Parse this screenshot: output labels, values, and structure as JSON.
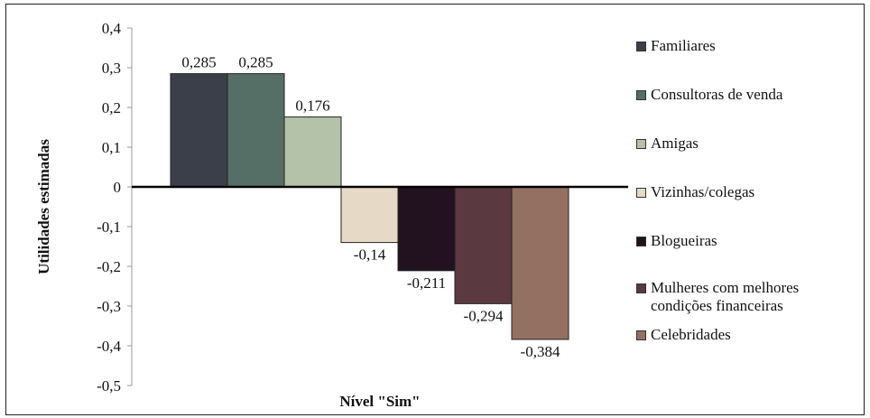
{
  "chart_data": {
    "type": "bar",
    "xlabel": "Nível \"Sim\"",
    "ylabel": "Utilidades estimadas",
    "ylim": [
      -0.5,
      0.4
    ],
    "yticks": [
      0.4,
      0.3,
      0.2,
      0.1,
      0,
      -0.1,
      -0.2,
      -0.3,
      -0.4,
      -0.5
    ],
    "ytick_labels": [
      "0,4",
      "0,3",
      "0,2",
      "0,1",
      "0",
      "-0,1",
      "-0,2",
      "-0,3",
      "-0,4",
      "-0,5"
    ],
    "grid": false,
    "legend_position": "right",
    "series": [
      {
        "name": "Familiares",
        "value": 0.285,
        "label": "0,285",
        "color": "#3b3f4a"
      },
      {
        "name": "Consultoras de venda",
        "value": 0.285,
        "label": "0,285",
        "color": "#566f66"
      },
      {
        "name": "Amigas",
        "value": 0.176,
        "label": "0,176",
        "color": "#b3c2a8"
      },
      {
        "name": "Vizinhas/colegas",
        "value": -0.14,
        "label": "-0,14",
        "color": "#e6dac6"
      },
      {
        "name": "Blogueiras",
        "value": -0.211,
        "label": "-0,211",
        "color": "#22111f"
      },
      {
        "name": "Mulheres com melhores condições financeiras",
        "value": -0.294,
        "label": "-0,294",
        "color": "#5a3940"
      },
      {
        "name": "Celebridades",
        "value": -0.384,
        "label": "-0,384",
        "color": "#947062"
      }
    ]
  }
}
